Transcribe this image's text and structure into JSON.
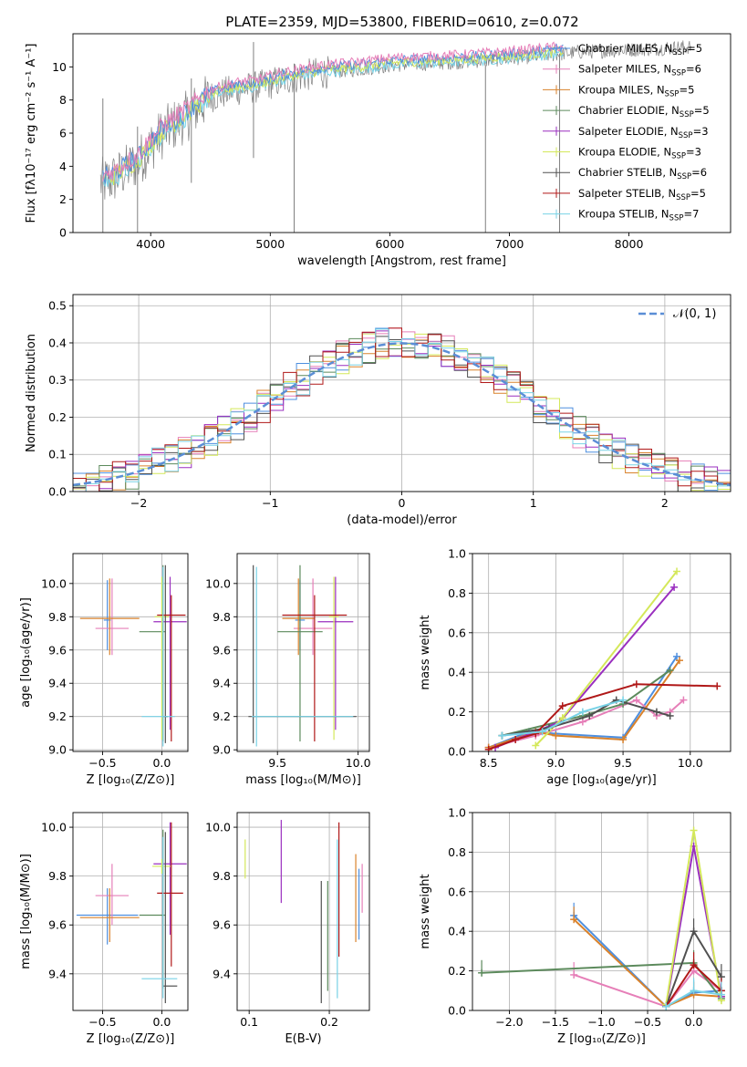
{
  "figure_title": "PLATE=2359, MJD=53800, FIBERID=0610, z=0.072",
  "colors": {
    "Chabrier MILES": "#4e8fdf",
    "Salpeter MILES": "#e67fb8",
    "Kroupa MILES": "#d9822b",
    "Chabrier ELODIE": "#5c8a5c",
    "Salpeter ELODIE": "#9a2fbf",
    "Kroupa ELODIE": "#d4e85a",
    "Chabrier STELIB": "#505050",
    "Salpeter STELIB": "#b01818",
    "Kroupa STELIB": "#78d2e6",
    "data": "#808080",
    "normal": "#5b8ed6"
  },
  "chart_data": [
    {
      "id": "spectrum",
      "type": "line",
      "title": "PLATE=2359, MJD=53800, FIBERID=0610, z=0.072",
      "xlabel": "wavelength [Angstrom, rest frame]",
      "ylabel": "Flux [fλ10⁻¹⁷ erg cm⁻² s⁻¹ A⁻¹]",
      "xlim": [
        3350,
        8850
      ],
      "ylim": [
        0,
        12
      ],
      "xticks": [
        4000,
        5000,
        6000,
        7000,
        8000
      ],
      "yticks": [
        0,
        2,
        4,
        6,
        8,
        10
      ],
      "grid": false,
      "legend_position": "right",
      "legend": [
        {
          "name": "Chabrier MILES",
          "label": "Chabrier MILES, N",
          "n": "=5"
        },
        {
          "name": "Salpeter MILES",
          "label": "Salpeter MILES, N",
          "n": "=6"
        },
        {
          "name": "Kroupa MILES",
          "label": "Kroupa MILES, N",
          "n": "=5"
        },
        {
          "name": "Chabrier ELODIE",
          "label": "Chabrier ELODIE, N",
          "n": "=5"
        },
        {
          "name": "Salpeter ELODIE",
          "label": "Salpeter ELODIE, N",
          "n": "=3"
        },
        {
          "name": "Kroupa ELODIE",
          "label": "Kroupa ELODIE, N",
          "n": "=3"
        },
        {
          "name": "Chabrier STELIB",
          "label": "Chabrier STELIB, N",
          "n": "=6"
        },
        {
          "name": "Salpeter STELIB",
          "label": "Salpeter STELIB, N",
          "n": "=5"
        },
        {
          "name": "Kroupa STELIB",
          "label": "Kroupa STELIB, N",
          "n": "=7"
        }
      ],
      "continuum": {
        "x": [
          3600,
          3700,
          3800,
          3900,
          4000,
          4100,
          4200,
          4300,
          4400,
          4500,
          4700,
          4900,
          5100,
          5300,
          5500,
          5800,
          6000,
          6300,
          6600,
          7000,
          7300,
          7600,
          7900,
          8200,
          8500
        ],
        "y": [
          3.0,
          3.3,
          3.8,
          4.3,
          5.2,
          6.0,
          6.5,
          7.0,
          7.6,
          8.2,
          8.6,
          8.8,
          9.2,
          9.5,
          9.7,
          9.9,
          10.1,
          10.2,
          10.3,
          10.5,
          10.7,
          10.9,
          11.0,
          11.1,
          11.2
        ]
      },
      "data_spikes": [
        {
          "x": 3600,
          "y": [
            0,
            8.1
          ]
        },
        {
          "x": 3890,
          "y": [
            0,
            6.4
          ]
        },
        {
          "x": 4340,
          "y": [
            3.0,
            9.3
          ]
        },
        {
          "x": 4860,
          "y": [
            4.5,
            11.5
          ]
        },
        {
          "x": 5200,
          "y": [
            0,
            10.2
          ]
        },
        {
          "x": 6800,
          "y": [
            0,
            10.1
          ]
        },
        {
          "x": 7420,
          "y": [
            0,
            10.8
          ]
        }
      ]
    },
    {
      "id": "residual_histogram",
      "type": "histogram",
      "xlabel": "(data-model)/error",
      "ylabel": "Normed distribution",
      "xlim": [
        -2.5,
        2.5
      ],
      "ylim": [
        0,
        0.53
      ],
      "xticks": [
        -2,
        -1,
        0,
        1,
        2
      ],
      "yticks": [
        0.0,
        0.1,
        0.2,
        0.3,
        0.4,
        0.5
      ],
      "grid": true,
      "bin_width": 0.1,
      "legend": [
        {
          "name": "normal",
          "label": "𝒩(0, 1)"
        }
      ],
      "normal": {
        "mean": 0,
        "sigma": 1
      }
    },
    {
      "id": "age_vs_Z",
      "type": "errorbar",
      "xlabel": "Z [log₁₀(Z/Z⊙)]",
      "ylabel": "age  [log₁₀(age/yr)]",
      "xlim": [
        -0.75,
        0.22
      ],
      "ylim": [
        8.99,
        10.18
      ],
      "xticks": [
        -0.5,
        0.0
      ],
      "yticks": [
        9.0,
        9.2,
        9.4,
        9.6,
        9.8,
        10.0
      ],
      "grid": true,
      "points": [
        {
          "name": "Chabrier MILES",
          "x": -0.46,
          "xerr": [
            0.03,
            0.03
          ],
          "y": 9.78,
          "yerr": [
            0.18,
            0.24
          ]
        },
        {
          "name": "Salpeter MILES",
          "x": -0.42,
          "xerr": [
            0.14,
            0.14
          ],
          "y": 9.73,
          "yerr": [
            0.16,
            0.3
          ]
        },
        {
          "name": "Kroupa MILES",
          "x": -0.44,
          "xerr": [
            0.25,
            0.25
          ],
          "y": 9.79,
          "yerr": [
            0.22,
            0.24
          ]
        },
        {
          "name": "Chabrier ELODIE",
          "x": 0.01,
          "xerr": [
            0.2,
            0.02
          ],
          "y": 9.71,
          "yerr": [
            0.66,
            0.4
          ]
        },
        {
          "name": "Salpeter ELODIE",
          "x": 0.07,
          "xerr": [
            0.14,
            0.14
          ],
          "y": 9.77,
          "yerr": [
            0.65,
            0.27
          ]
        },
        {
          "name": "Kroupa ELODIE",
          "x": 0.0,
          "xerr": [
            0.06,
            0.06
          ],
          "y": 9.8,
          "yerr": [
            0.74,
            0.24
          ]
        },
        {
          "name": "Chabrier STELIB",
          "x": 0.03,
          "xerr": [
            0.02,
            0.02
          ],
          "y": 9.2,
          "yerr": [
            0.16,
            0.91
          ]
        },
        {
          "name": "Salpeter STELIB",
          "x": 0.08,
          "xerr": [
            0.12,
            0.12
          ],
          "y": 9.81,
          "yerr": [
            0.76,
            0.12
          ]
        },
        {
          "name": "Kroupa STELIB",
          "x": 0.01,
          "xerr": [
            0.18,
            0.1
          ],
          "y": 9.2,
          "yerr": [
            0.18,
            0.9
          ]
        }
      ]
    },
    {
      "id": "age_vs_mass",
      "type": "errorbar",
      "xlabel": "mass [log₁₀(M/M⊙)]",
      "ylabel": "",
      "xlim": [
        9.25,
        10.07
      ],
      "ylim": [
        8.99,
        10.18
      ],
      "xticks": [
        9.5,
        10.0
      ],
      "yticks": [
        9.0,
        9.2,
        9.4,
        9.6,
        9.8,
        10.0
      ],
      "grid": true,
      "points": [
        {
          "name": "Chabrier MILES",
          "x": 9.64,
          "xerr": [
            0.03,
            0.03
          ],
          "y": 9.78,
          "yerr": [
            0.18,
            0.24
          ]
        },
        {
          "name": "Salpeter MILES",
          "x": 9.72,
          "xerr": [
            0.12,
            0.12
          ],
          "y": 9.73,
          "yerr": [
            0.16,
            0.3
          ]
        },
        {
          "name": "Kroupa MILES",
          "x": 9.63,
          "xerr": [
            0.1,
            0.1
          ],
          "y": 9.79,
          "yerr": [
            0.22,
            0.24
          ]
        },
        {
          "name": "Chabrier ELODIE",
          "x": 9.64,
          "xerr": [
            0.14,
            0.14
          ],
          "y": 9.71,
          "yerr": [
            0.66,
            0.4
          ]
        },
        {
          "name": "Salpeter ELODIE",
          "x": 9.86,
          "xerr": [
            0.11,
            0.11
          ],
          "y": 9.77,
          "yerr": [
            0.65,
            0.27
          ]
        },
        {
          "name": "Kroupa ELODIE",
          "x": 9.85,
          "xerr": [
            0.03,
            0.03
          ],
          "y": 9.8,
          "yerr": [
            0.74,
            0.24
          ]
        },
        {
          "name": "Chabrier STELIB",
          "x": 9.35,
          "xerr": [
            0.03,
            0.64
          ],
          "y": 9.2,
          "yerr": [
            0.16,
            0.91
          ]
        },
        {
          "name": "Salpeter STELIB",
          "x": 9.73,
          "xerr": [
            0.2,
            0.2
          ],
          "y": 9.81,
          "yerr": [
            0.76,
            0.12
          ]
        },
        {
          "name": "Kroupa STELIB",
          "x": 9.37,
          "xerr": [
            0.03,
            0.6
          ],
          "y": 9.2,
          "yerr": [
            0.18,
            0.9
          ]
        }
      ]
    },
    {
      "id": "massweight_vs_age",
      "type": "line",
      "xlabel": "age  [log₁₀(age/yr)]",
      "ylabel": "mass weight",
      "xlim": [
        8.38,
        10.3
      ],
      "ylim": [
        0,
        1.0
      ],
      "xticks": [
        8.5,
        9.0,
        9.5,
        10.0
      ],
      "yticks": [
        0.0,
        0.2,
        0.4,
        0.6,
        0.8,
        1.0
      ],
      "grid": true,
      "series": [
        {
          "name": "Chabrier MILES",
          "x": [
            8.5,
            8.8,
            9.0,
            9.5,
            9.9
          ],
          "y": [
            0.02,
            0.1,
            0.09,
            0.07,
            0.48
          ]
        },
        {
          "name": "Salpeter MILES",
          "x": [
            8.5,
            8.85,
            9.2,
            9.6,
            9.75,
            9.85,
            9.95
          ],
          "y": [
            0.02,
            0.08,
            0.15,
            0.26,
            0.18,
            0.2,
            0.26
          ]
        },
        {
          "name": "Kroupa MILES",
          "x": [
            8.5,
            8.85,
            9.0,
            9.5,
            9.92
          ],
          "y": [
            0.02,
            0.1,
            0.08,
            0.06,
            0.46
          ]
        },
        {
          "name": "Chabrier ELODIE",
          "x": [
            8.6,
            9.2,
            9.5,
            9.85
          ],
          "y": [
            0.08,
            0.18,
            0.24,
            0.41
          ]
        },
        {
          "name": "Salpeter ELODIE",
          "x": [
            8.55,
            9.03,
            9.88
          ],
          "y": [
            0.02,
            0.15,
            0.83
          ]
        },
        {
          "name": "Kroupa ELODIE",
          "x": [
            8.85,
            9.05,
            9.9
          ],
          "y": [
            0.03,
            0.17,
            0.91
          ]
        },
        {
          "name": "Chabrier STELIB",
          "x": [
            8.6,
            8.95,
            9.25,
            9.45,
            9.75,
            9.85
          ],
          "y": [
            0.08,
            0.12,
            0.18,
            0.26,
            0.2,
            0.18
          ]
        },
        {
          "name": "Salpeter STELIB",
          "x": [
            8.5,
            8.7,
            8.85,
            9.05,
            9.6,
            10.2
          ],
          "y": [
            0.01,
            0.06,
            0.09,
            0.23,
            0.34,
            0.33
          ]
        },
        {
          "name": "Kroupa STELIB",
          "x": [
            8.6,
            8.9,
            9.2,
            9.5
          ],
          "y": [
            0.08,
            0.1,
            0.2,
            0.26
          ]
        }
      ]
    },
    {
      "id": "mass_vs_Z",
      "type": "errorbar",
      "xlabel": "Z [log₁₀(Z/Z⊙)]",
      "ylabel": "mass [log₁₀(M/M⊙)]",
      "xlim": [
        -0.75,
        0.22
      ],
      "ylim": [
        9.25,
        10.06
      ],
      "xticks": [
        -0.5,
        0.0
      ],
      "yticks": [
        9.4,
        9.6,
        9.8,
        10.0
      ],
      "grid": true,
      "points": [
        {
          "name": "Chabrier MILES",
          "x": -0.46,
          "xerr": [
            0.26,
            0.26
          ],
          "y": 9.64,
          "yerr": [
            0.12,
            0.11
          ]
        },
        {
          "name": "Salpeter MILES",
          "x": -0.42,
          "xerr": [
            0.14,
            0.14
          ],
          "y": 9.72,
          "yerr": [
            0.12,
            0.13
          ]
        },
        {
          "name": "Kroupa MILES",
          "x": -0.44,
          "xerr": [
            0.25,
            0.25
          ],
          "y": 9.63,
          "yerr": [
            0.1,
            0.12
          ]
        },
        {
          "name": "Chabrier ELODIE",
          "x": 0.01,
          "xerr": [
            0.2,
            0.02
          ],
          "y": 9.64,
          "yerr": [
            0.3,
            0.35
          ]
        },
        {
          "name": "Salpeter ELODIE",
          "x": 0.07,
          "xerr": [
            0.14,
            0.14
          ],
          "y": 9.85,
          "yerr": [
            0.29,
            0.17
          ]
        },
        {
          "name": "Kroupa ELODIE",
          "x": 0.0,
          "xerr": [
            0.08,
            0.08
          ],
          "y": 9.84,
          "yerr": [
            0.03,
            0.03
          ]
        },
        {
          "name": "Chabrier STELIB",
          "x": 0.03,
          "xerr": [
            0.02,
            0.1
          ],
          "y": 9.35,
          "yerr": [
            0.07,
            0.63
          ]
        },
        {
          "name": "Salpeter STELIB",
          "x": 0.08,
          "xerr": [
            0.12,
            0.1
          ],
          "y": 9.73,
          "yerr": [
            0.3,
            0.29
          ]
        },
        {
          "name": "Kroupa STELIB",
          "x": 0.01,
          "xerr": [
            0.18,
            0.12
          ],
          "y": 9.38,
          "yerr": [
            0.08,
            0.58
          ]
        }
      ]
    },
    {
      "id": "ebv_strips",
      "type": "errorbar",
      "xlabel": "E(B-V)",
      "ylabel": "",
      "xlim": [
        0.085,
        0.25
      ],
      "ylim": [
        9.25,
        10.06
      ],
      "xticks": [
        0.1,
        0.2
      ],
      "yticks": [
        9.4,
        9.6,
        9.8,
        10.0
      ],
      "grid": true,
      "points": [
        {
          "name": "Chabrier MILES",
          "x": 0.237,
          "y": 9.71,
          "yerr": [
            0.17,
            0.12
          ]
        },
        {
          "name": "Salpeter MILES",
          "x": 0.241,
          "y": 9.75,
          "yerr": [
            0.1,
            0.1
          ]
        },
        {
          "name": "Kroupa MILES",
          "x": 0.233,
          "y": 9.74,
          "yerr": [
            0.21,
            0.15
          ]
        },
        {
          "name": "Chabrier ELODIE",
          "x": 0.198,
          "y": 9.58,
          "yerr": [
            0.25,
            0.2
          ]
        },
        {
          "name": "Salpeter ELODIE",
          "x": 0.14,
          "y": 9.86,
          "yerr": [
            0.17,
            0.17
          ]
        },
        {
          "name": "Kroupa ELODIE",
          "x": 0.095,
          "y": 9.87,
          "yerr": [
            0.08,
            0.08
          ]
        },
        {
          "name": "Chabrier STELIB",
          "x": 0.19,
          "y": 9.63,
          "yerr": [
            0.35,
            0.15
          ]
        },
        {
          "name": "Salpeter STELIB",
          "x": 0.212,
          "y": 9.82,
          "yerr": [
            0.35,
            0.2
          ]
        },
        {
          "name": "Kroupa STELIB",
          "x": 0.21,
          "y": 9.63,
          "yerr": [
            0.33,
            0.32
          ]
        }
      ]
    },
    {
      "id": "massweight_vs_Z",
      "type": "line",
      "xlabel": "Z [log₁₀(Z/Z⊙)]",
      "ylabel": "mass weight",
      "xlim": [
        -2.4,
        0.4
      ],
      "ylim": [
        0,
        1.0
      ],
      "xticks": [
        -2.0,
        -1.5,
        -1.0,
        -0.5,
        0.0
      ],
      "yticks": [
        0.0,
        0.2,
        0.4,
        0.6,
        0.8,
        1.0
      ],
      "grid": true,
      "series": [
        {
          "name": "Chabrier MILES",
          "x": [
            -1.3,
            -0.3,
            0.0,
            0.3
          ],
          "y": [
            0.48,
            0.02,
            0.09,
            0.1
          ]
        },
        {
          "name": "Salpeter MILES",
          "x": [
            -1.3,
            -0.3,
            0.0,
            0.3
          ],
          "y": [
            0.18,
            0.02,
            0.2,
            0.1
          ]
        },
        {
          "name": "Kroupa MILES",
          "x": [
            -1.3,
            -0.3,
            0.0,
            0.3
          ],
          "y": [
            0.46,
            0.02,
            0.08,
            0.07
          ]
        },
        {
          "name": "Chabrier ELODIE",
          "x": [
            -2.3,
            0.0,
            0.3
          ],
          "y": [
            0.19,
            0.24,
            0.06
          ]
        },
        {
          "name": "Salpeter ELODIE",
          "x": [
            -0.3,
            0.0,
            0.3
          ],
          "y": [
            0.02,
            0.83,
            0.07
          ]
        },
        {
          "name": "Kroupa ELODIE",
          "x": [
            -0.3,
            0.0,
            0.3
          ],
          "y": [
            0.03,
            0.91,
            0.05
          ]
        },
        {
          "name": "Chabrier STELIB",
          "x": [
            -0.3,
            0.0,
            0.3
          ],
          "y": [
            0.02,
            0.4,
            0.17
          ]
        },
        {
          "name": "Salpeter STELIB",
          "x": [
            -0.3,
            0.0,
            0.3
          ],
          "y": [
            0.02,
            0.23,
            0.1
          ]
        },
        {
          "name": "Kroupa STELIB",
          "x": [
            -0.3,
            0.0,
            0.3
          ],
          "y": [
            0.02,
            0.1,
            0.08
          ]
        }
      ]
    }
  ]
}
